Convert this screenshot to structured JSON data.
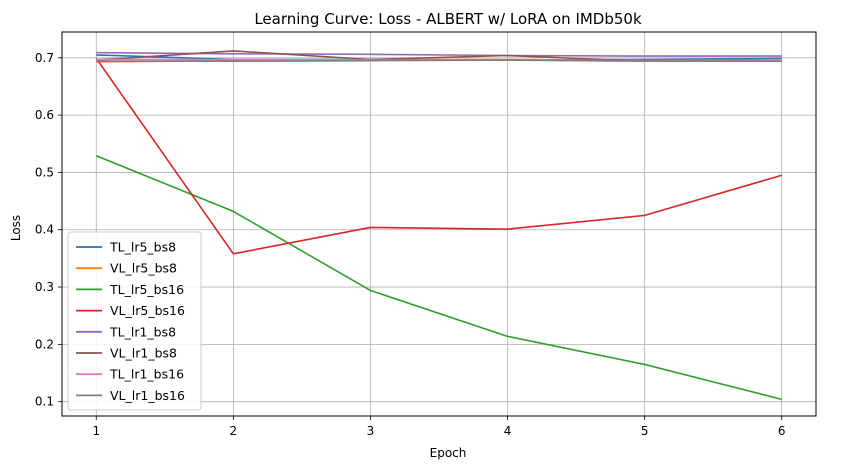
{
  "chart_data": {
    "type": "line",
    "title": "Learning Curve: Loss - ALBERT w/ LoRA on IMDb50k",
    "xlabel": "Epoch",
    "ylabel": "Loss",
    "x": [
      1,
      2,
      3,
      4,
      5,
      6
    ],
    "xticks": [
      "1",
      "2",
      "3",
      "4",
      "5",
      "6"
    ],
    "yticks": [
      "0.1",
      "0.2",
      "0.3",
      "0.4",
      "0.5",
      "0.6",
      "0.7"
    ],
    "xlim": [
      0.75,
      6.25
    ],
    "ylim": [
      0.075,
      0.745
    ],
    "grid": true,
    "legend_position": "lower-left",
    "series": [
      {
        "name": "TL_lr5_bs8",
        "color": "#1f77b4",
        "values": [
          0.705,
          0.697,
          0.697,
          0.696,
          0.697,
          0.699
        ]
      },
      {
        "name": "VL_lr5_bs8",
        "color": "#ff7f0e",
        "values": [
          0.693,
          0.695,
          0.697,
          0.697,
          0.695,
          0.695
        ]
      },
      {
        "name": "TL_lr5_bs16",
        "color": "#2ca02c",
        "values": [
          0.529,
          0.432,
          0.294,
          0.214,
          0.165,
          0.104
        ]
      },
      {
        "name": "VL_lr5_bs16",
        "color": "#d62728",
        "values": [
          0.699,
          0.358,
          0.404,
          0.401,
          0.425,
          0.495
        ]
      },
      {
        "name": "TL_lr1_bs8",
        "color": "#9467bd",
        "values": [
          0.709,
          0.707,
          0.706,
          0.704,
          0.703,
          0.703
        ]
      },
      {
        "name": "VL_lr1_bs8",
        "color": "#8c564b",
        "values": [
          0.696,
          0.712,
          0.697,
          0.704,
          0.694,
          0.694
        ]
      },
      {
        "name": "TL_lr1_bs16",
        "color": "#e377c2",
        "values": [
          0.697,
          0.697,
          0.696,
          0.696,
          0.695,
          0.696
        ]
      },
      {
        "name": "VL_lr1_bs16",
        "color": "#7f7f7f",
        "values": [
          0.694,
          0.694,
          0.695,
          0.696,
          0.694,
          0.694
        ]
      }
    ]
  }
}
